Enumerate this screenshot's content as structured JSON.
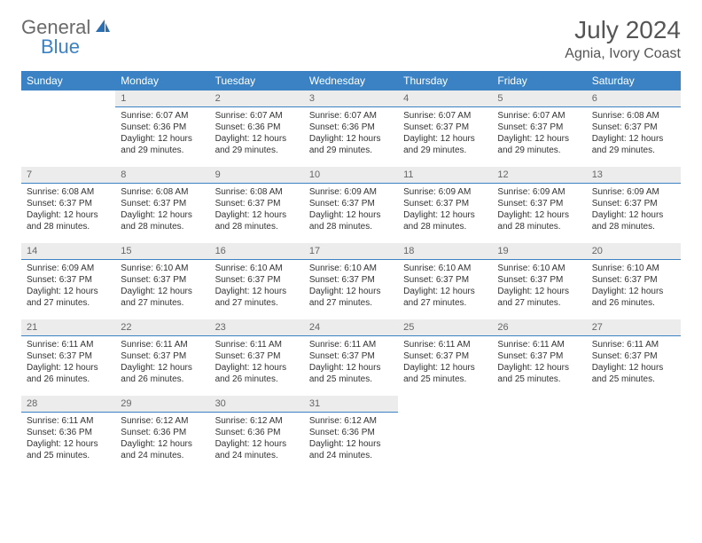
{
  "logo": {
    "general": "General",
    "blue": "Blue"
  },
  "title": "July 2024",
  "location": "Agnia, Ivory Coast",
  "colors": {
    "header_bg": "#3b82c4",
    "daynum_bg": "#ececec",
    "daynum_border": "#3b82c4",
    "text": "#333333",
    "muted": "#666666"
  },
  "weekdays": [
    "Sunday",
    "Monday",
    "Tuesday",
    "Wednesday",
    "Thursday",
    "Friday",
    "Saturday"
  ],
  "weeks": [
    [
      null,
      {
        "n": "1",
        "sr": "Sunrise: 6:07 AM",
        "ss": "Sunset: 6:36 PM",
        "dl1": "Daylight: 12 hours",
        "dl2": "and 29 minutes."
      },
      {
        "n": "2",
        "sr": "Sunrise: 6:07 AM",
        "ss": "Sunset: 6:36 PM",
        "dl1": "Daylight: 12 hours",
        "dl2": "and 29 minutes."
      },
      {
        "n": "3",
        "sr": "Sunrise: 6:07 AM",
        "ss": "Sunset: 6:36 PM",
        "dl1": "Daylight: 12 hours",
        "dl2": "and 29 minutes."
      },
      {
        "n": "4",
        "sr": "Sunrise: 6:07 AM",
        "ss": "Sunset: 6:37 PM",
        "dl1": "Daylight: 12 hours",
        "dl2": "and 29 minutes."
      },
      {
        "n": "5",
        "sr": "Sunrise: 6:07 AM",
        "ss": "Sunset: 6:37 PM",
        "dl1": "Daylight: 12 hours",
        "dl2": "and 29 minutes."
      },
      {
        "n": "6",
        "sr": "Sunrise: 6:08 AM",
        "ss": "Sunset: 6:37 PM",
        "dl1": "Daylight: 12 hours",
        "dl2": "and 29 minutes."
      }
    ],
    [
      {
        "n": "7",
        "sr": "Sunrise: 6:08 AM",
        "ss": "Sunset: 6:37 PM",
        "dl1": "Daylight: 12 hours",
        "dl2": "and 28 minutes."
      },
      {
        "n": "8",
        "sr": "Sunrise: 6:08 AM",
        "ss": "Sunset: 6:37 PM",
        "dl1": "Daylight: 12 hours",
        "dl2": "and 28 minutes."
      },
      {
        "n": "9",
        "sr": "Sunrise: 6:08 AM",
        "ss": "Sunset: 6:37 PM",
        "dl1": "Daylight: 12 hours",
        "dl2": "and 28 minutes."
      },
      {
        "n": "10",
        "sr": "Sunrise: 6:09 AM",
        "ss": "Sunset: 6:37 PM",
        "dl1": "Daylight: 12 hours",
        "dl2": "and 28 minutes."
      },
      {
        "n": "11",
        "sr": "Sunrise: 6:09 AM",
        "ss": "Sunset: 6:37 PM",
        "dl1": "Daylight: 12 hours",
        "dl2": "and 28 minutes."
      },
      {
        "n": "12",
        "sr": "Sunrise: 6:09 AM",
        "ss": "Sunset: 6:37 PM",
        "dl1": "Daylight: 12 hours",
        "dl2": "and 28 minutes."
      },
      {
        "n": "13",
        "sr": "Sunrise: 6:09 AM",
        "ss": "Sunset: 6:37 PM",
        "dl1": "Daylight: 12 hours",
        "dl2": "and 28 minutes."
      }
    ],
    [
      {
        "n": "14",
        "sr": "Sunrise: 6:09 AM",
        "ss": "Sunset: 6:37 PM",
        "dl1": "Daylight: 12 hours",
        "dl2": "and 27 minutes."
      },
      {
        "n": "15",
        "sr": "Sunrise: 6:10 AM",
        "ss": "Sunset: 6:37 PM",
        "dl1": "Daylight: 12 hours",
        "dl2": "and 27 minutes."
      },
      {
        "n": "16",
        "sr": "Sunrise: 6:10 AM",
        "ss": "Sunset: 6:37 PM",
        "dl1": "Daylight: 12 hours",
        "dl2": "and 27 minutes."
      },
      {
        "n": "17",
        "sr": "Sunrise: 6:10 AM",
        "ss": "Sunset: 6:37 PM",
        "dl1": "Daylight: 12 hours",
        "dl2": "and 27 minutes."
      },
      {
        "n": "18",
        "sr": "Sunrise: 6:10 AM",
        "ss": "Sunset: 6:37 PM",
        "dl1": "Daylight: 12 hours",
        "dl2": "and 27 minutes."
      },
      {
        "n": "19",
        "sr": "Sunrise: 6:10 AM",
        "ss": "Sunset: 6:37 PM",
        "dl1": "Daylight: 12 hours",
        "dl2": "and 27 minutes."
      },
      {
        "n": "20",
        "sr": "Sunrise: 6:10 AM",
        "ss": "Sunset: 6:37 PM",
        "dl1": "Daylight: 12 hours",
        "dl2": "and 26 minutes."
      }
    ],
    [
      {
        "n": "21",
        "sr": "Sunrise: 6:11 AM",
        "ss": "Sunset: 6:37 PM",
        "dl1": "Daylight: 12 hours",
        "dl2": "and 26 minutes."
      },
      {
        "n": "22",
        "sr": "Sunrise: 6:11 AM",
        "ss": "Sunset: 6:37 PM",
        "dl1": "Daylight: 12 hours",
        "dl2": "and 26 minutes."
      },
      {
        "n": "23",
        "sr": "Sunrise: 6:11 AM",
        "ss": "Sunset: 6:37 PM",
        "dl1": "Daylight: 12 hours",
        "dl2": "and 26 minutes."
      },
      {
        "n": "24",
        "sr": "Sunrise: 6:11 AM",
        "ss": "Sunset: 6:37 PM",
        "dl1": "Daylight: 12 hours",
        "dl2": "and 25 minutes."
      },
      {
        "n": "25",
        "sr": "Sunrise: 6:11 AM",
        "ss": "Sunset: 6:37 PM",
        "dl1": "Daylight: 12 hours",
        "dl2": "and 25 minutes."
      },
      {
        "n": "26",
        "sr": "Sunrise: 6:11 AM",
        "ss": "Sunset: 6:37 PM",
        "dl1": "Daylight: 12 hours",
        "dl2": "and 25 minutes."
      },
      {
        "n": "27",
        "sr": "Sunrise: 6:11 AM",
        "ss": "Sunset: 6:37 PM",
        "dl1": "Daylight: 12 hours",
        "dl2": "and 25 minutes."
      }
    ],
    [
      {
        "n": "28",
        "sr": "Sunrise: 6:11 AM",
        "ss": "Sunset: 6:36 PM",
        "dl1": "Daylight: 12 hours",
        "dl2": "and 25 minutes."
      },
      {
        "n": "29",
        "sr": "Sunrise: 6:12 AM",
        "ss": "Sunset: 6:36 PM",
        "dl1": "Daylight: 12 hours",
        "dl2": "and 24 minutes."
      },
      {
        "n": "30",
        "sr": "Sunrise: 6:12 AM",
        "ss": "Sunset: 6:36 PM",
        "dl1": "Daylight: 12 hours",
        "dl2": "and 24 minutes."
      },
      {
        "n": "31",
        "sr": "Sunrise: 6:12 AM",
        "ss": "Sunset: 6:36 PM",
        "dl1": "Daylight: 12 hours",
        "dl2": "and 24 minutes."
      },
      null,
      null,
      null
    ]
  ]
}
